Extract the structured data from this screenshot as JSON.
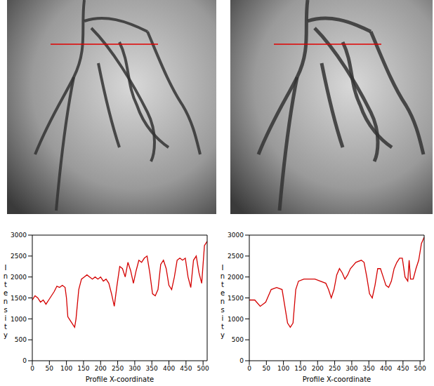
{
  "chart_data": [
    {
      "type": "line",
      "x_label": "Profile X-coordinate",
      "y_label": "Intensity",
      "color": "#d40000",
      "grid": false,
      "xlim": [
        0,
        512
      ],
      "xticks": [
        0,
        50,
        100,
        150,
        200,
        250,
        300,
        350,
        400,
        450,
        500
      ],
      "ylim": [
        0,
        3000
      ],
      "yticks": [
        0,
        500,
        1000,
        1500,
        2000,
        2500,
        3000
      ],
      "x": [
        0,
        8,
        16,
        24,
        32,
        40,
        48,
        56,
        64,
        72,
        80,
        88,
        96,
        100,
        104,
        112,
        120,
        124,
        128,
        136,
        144,
        152,
        160,
        168,
        176,
        184,
        192,
        200,
        208,
        216,
        224,
        232,
        240,
        248,
        256,
        264,
        272,
        280,
        288,
        296,
        304,
        312,
        320,
        328,
        336,
        344,
        352,
        360,
        368,
        376,
        384,
        392,
        400,
        408,
        416,
        424,
        432,
        440,
        448,
        456,
        464,
        472,
        480,
        488,
        496,
        504,
        512
      ],
      "values": [
        1450,
        1550,
        1500,
        1400,
        1450,
        1350,
        1450,
        1550,
        1650,
        1780,
        1750,
        1800,
        1750,
        1500,
        1050,
        950,
        850,
        800,
        1000,
        1700,
        1950,
        2000,
        2050,
        2000,
        1950,
        2000,
        1950,
        2000,
        1900,
        1950,
        1850,
        1600,
        1300,
        1800,
        2250,
        2200,
        2000,
        2350,
        2150,
        1850,
        2150,
        2400,
        2350,
        2450,
        2500,
        2100,
        1600,
        1550,
        1700,
        2300,
        2400,
        2200,
        1800,
        1700,
        2000,
        2400,
        2450,
        2400,
        2450,
        2000,
        1750,
        2400,
        2500,
        2100,
        1850,
        2750,
        2850
      ]
    },
    {
      "type": "line",
      "x_label": "Profile X-coordinate",
      "y_label": "Intensity",
      "color": "#d40000",
      "grid": false,
      "xlim": [
        0,
        512
      ],
      "xticks": [
        0,
        50,
        100,
        150,
        200,
        250,
        300,
        350,
        400,
        450,
        500
      ],
      "ylim": [
        0,
        3000
      ],
      "yticks": [
        0,
        500,
        1000,
        1500,
        2000,
        2500,
        3000
      ],
      "x": [
        0,
        16,
        32,
        48,
        64,
        80,
        96,
        104,
        112,
        120,
        128,
        136,
        144,
        160,
        176,
        192,
        208,
        224,
        232,
        240,
        248,
        256,
        264,
        272,
        280,
        288,
        296,
        312,
        328,
        336,
        344,
        352,
        360,
        368,
        376,
        384,
        392,
        400,
        408,
        416,
        424,
        432,
        440,
        448,
        456,
        464,
        468,
        472,
        480,
        488,
        496,
        504,
        512
      ],
      "values": [
        1450,
        1450,
        1300,
        1400,
        1700,
        1750,
        1700,
        1300,
        900,
        800,
        900,
        1700,
        1900,
        1950,
        1950,
        1950,
        1900,
        1850,
        1700,
        1500,
        1700,
        2050,
        2200,
        2100,
        1950,
        2050,
        2200,
        2350,
        2400,
        2350,
        2000,
        1600,
        1500,
        1800,
        2200,
        2200,
        2000,
        1800,
        1750,
        1900,
        2200,
        2350,
        2450,
        2450,
        2000,
        1900,
        2400,
        1950,
        1950,
        2200,
        2400,
        2800,
        2950
      ]
    }
  ]
}
